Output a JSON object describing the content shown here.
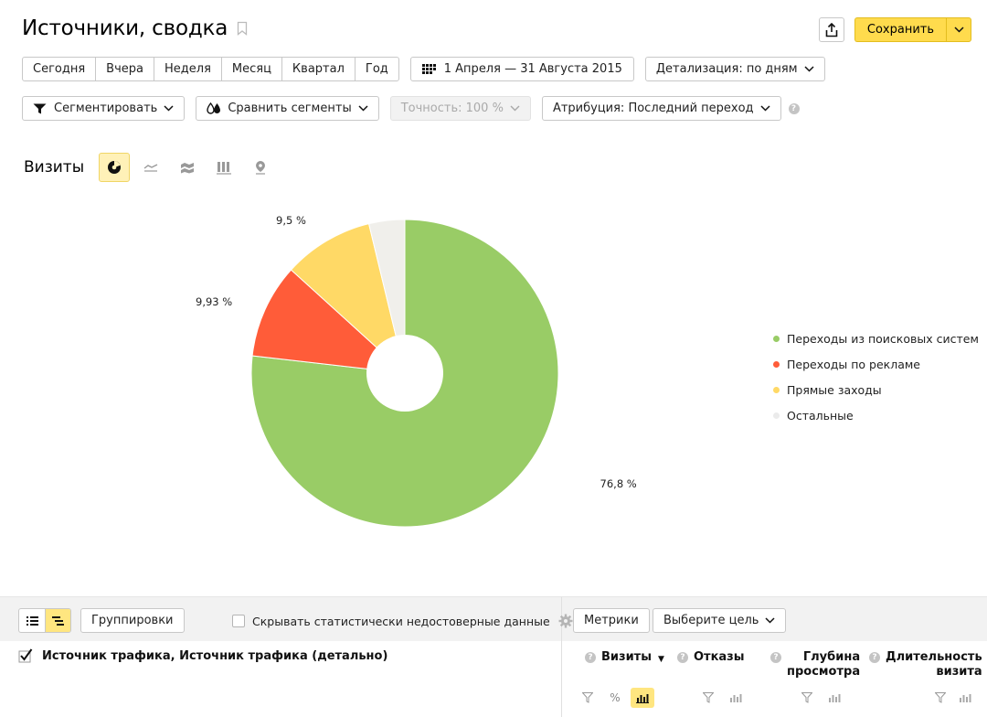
{
  "header": {
    "title": "Источники, сводка",
    "save_label": "Сохранить"
  },
  "period_buttons": [
    "Сегодня",
    "Вчера",
    "Неделя",
    "Месяц",
    "Квартал",
    "Год"
  ],
  "date_range": "1 Апреля — 31 Августа 2015",
  "detail_label": "Детализация: по дням",
  "segment_label": "Сегментировать",
  "compare_label": "Сравнить сегменты",
  "accuracy_label": "Точность: 100 %",
  "attribution_label": "Атрибуция: Последний переход",
  "chart_section": {
    "label": "Визиты",
    "tabs": [
      "pie-icon",
      "line-icon",
      "area-icon",
      "bar-icon",
      "map-icon"
    ]
  },
  "chart_data": {
    "type": "pie",
    "donut": true,
    "title": "",
    "slices": [
      {
        "name": "Переходы из поисковых систем",
        "value": 76.8,
        "label": "76,8 %",
        "color": "#99cc66"
      },
      {
        "name": "Переходы по рекламе",
        "value": 9.93,
        "label": "9,93 %",
        "color": "#ff5c39"
      },
      {
        "name": "Прямые заходы",
        "value": 9.5,
        "label": "9,5 %",
        "color": "#ffd966"
      },
      {
        "name": "Остальные",
        "value": 3.77,
        "label": "",
        "color": "#f0efeb"
      }
    ],
    "legend_position": "right"
  },
  "bottom": {
    "groupings_label": "Группировки",
    "hide_label": "Скрывать статистически недостоверные данные",
    "metrics_label": "Метрики",
    "goal_label": "Выберите цель"
  },
  "table": {
    "dimension": "Источник трафика, Источник трафика (детально)",
    "columns": [
      {
        "line1": "Визиты",
        "line2": "",
        "sorted": true
      },
      {
        "line1": "Отказы",
        "line2": ""
      },
      {
        "line1": "Глубина",
        "line2": "просмотра"
      },
      {
        "line1": "Длительность",
        "line2": "визита"
      }
    ]
  }
}
